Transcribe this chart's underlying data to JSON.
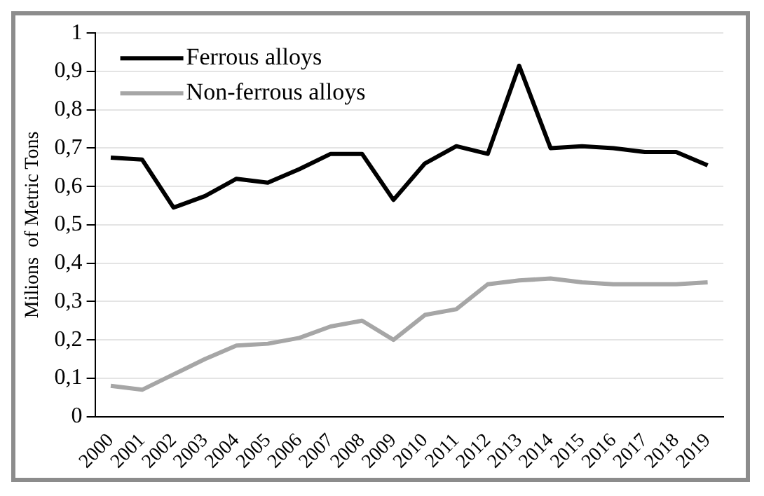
{
  "chart_data": {
    "type": "line",
    "ylabel": "Milions  of Metric Tons",
    "categories": [
      "2000",
      "2001",
      "2002",
      "2003",
      "2004",
      "2005",
      "2006",
      "2007",
      "2008",
      "2009",
      "2010",
      "2011",
      "2012",
      "2013",
      "2014",
      "2015",
      "2016",
      "2017",
      "2018",
      "2019"
    ],
    "series": [
      {
        "name": "Ferrous alloys",
        "color": "#000000",
        "values": [
          0.675,
          0.67,
          0.545,
          0.575,
          0.62,
          0.61,
          0.645,
          0.685,
          0.685,
          0.565,
          0.66,
          0.705,
          0.685,
          0.915,
          0.7,
          0.705,
          0.7,
          0.69,
          0.69,
          0.655
        ]
      },
      {
        "name": "Non-ferrous alloys",
        "color": "#a6a6a6",
        "values": [
          0.08,
          0.07,
          0.11,
          0.15,
          0.185,
          0.19,
          0.205,
          0.235,
          0.25,
          0.2,
          0.265,
          0.28,
          0.345,
          0.355,
          0.36,
          0.35,
          0.345,
          0.345,
          0.345,
          0.35
        ]
      }
    ],
    "ylim": [
      0,
      1
    ],
    "yticks": [
      0,
      {
        "value": 0.1,
        "label": "0,1"
      },
      {
        "value": 0.2,
        "label": "0,2"
      },
      {
        "value": 0.3,
        "label": "0,3"
      },
      {
        "value": 0.4,
        "label": "0,4"
      },
      {
        "value": 0.5,
        "label": "0,5"
      },
      {
        "value": 0.6,
        "label": "0,6"
      },
      {
        "value": 0.7,
        "label": "0,7"
      },
      {
        "value": 0.8,
        "label": "0,8"
      },
      {
        "value": 0.9,
        "label": "0,9"
      },
      1
    ],
    "grid": "y",
    "legend": "top left",
    "marker": "none",
    "line_style": "solid"
  }
}
